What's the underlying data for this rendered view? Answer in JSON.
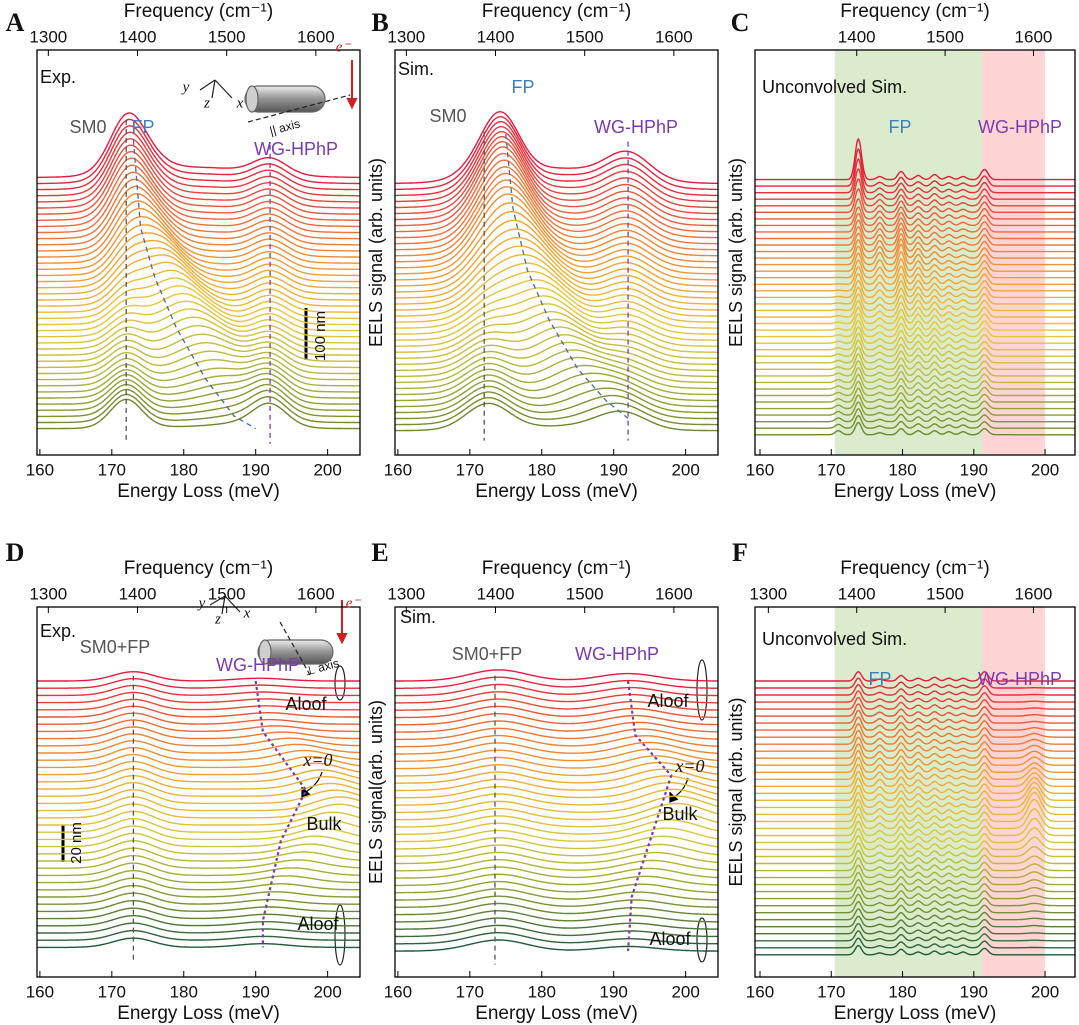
{
  "chart_data": [
    {
      "type": "waterfall",
      "letter": "A",
      "x2label": "Frequency (cm⁻¹)",
      "xlabel": "Energy Loss (meV)",
      "xlim": [
        159.6,
        204.5
      ],
      "xticks": [
        160,
        170,
        180,
        190,
        200
      ],
      "x2lim": [
        1287.3,
        1649.5
      ],
      "x2ticks": [
        1300,
        1400,
        1500,
        1600
      ],
      "count": 42,
      "colors": [
        "#e8193c",
        "#f06a3a",
        "#f4a030",
        "#e8c83a",
        "#b8b840",
        "#6b8a2a"
      ],
      "peaks": [
        {
          "c": [
            172
          ],
          "w": [
            2.2
          ],
          "a": [
            30,
            25,
            20,
            18,
            18,
            20,
            28
          ]
        },
        {
          "c": [
            173,
            173.5,
            175,
            177.5,
            181,
            185,
            189.5
          ],
          "w": [
            3,
            3,
            3,
            3.5,
            4,
            4,
            4
          ],
          "a": [
            30,
            35,
            40,
            40,
            30,
            15,
            5
          ]
        },
        {
          "c": [
            192
          ],
          "w": [
            2.3
          ],
          "a": [
            15,
            15,
            15,
            15,
            15,
            18,
            20
          ]
        },
        {
          "c": [
            182
          ],
          "w": [
            8
          ],
          "a": [
            10,
            8,
            6,
            4,
            3,
            2,
            2
          ]
        }
      ],
      "guides": [
        {
          "color": "#555555",
          "style": "dashed",
          "points": [
            [
              172,
              -0.23
            ],
            [
              172,
              1.06
            ]
          ]
        },
        {
          "color": "#7b3bb0",
          "style": "dashed",
          "points": [
            [
              192,
              -0.13
            ],
            [
              192,
              1.06
            ]
          ]
        },
        {
          "color": "#4a6aa0",
          "style": "dashed",
          "points": [
            [
              173,
              -0.15
            ],
            [
              174,
              0.2
            ],
            [
              176,
              0.4
            ],
            [
              179,
              0.6
            ],
            [
              183,
              0.8
            ],
            [
              187,
              0.95
            ],
            [
              190,
              1.0
            ]
          ]
        }
      ],
      "annotations": [
        {
          "text": "Exp."
        },
        {
          "text": "SM0",
          "color": "#555555"
        },
        {
          "text": "FP",
          "color": "#3a7fc1"
        },
        {
          "text": "WG-HPhP",
          "color": "#7b3bb0"
        },
        {
          "text": "100 nm"
        },
        {
          "text": "y"
        },
        {
          "text": "z"
        },
        {
          "text": "x"
        },
        {
          "text": "e⁻",
          "color": "#d02020"
        },
        {
          "text": "|| axis"
        }
      ]
    },
    {
      "type": "waterfall",
      "letter": "B",
      "x2label": "Frequency (cm⁻¹)",
      "xlabel": "Energy Loss (meV)",
      "ylabel": "EELS signal (arb. units)",
      "xlim": [
        159.6,
        204.5
      ],
      "xticks": [
        160,
        170,
        180,
        190,
        200
      ],
      "x2lim": [
        1287.3,
        1649.5
      ],
      "x2ticks": [
        1300,
        1400,
        1500,
        1600
      ],
      "count": 42,
      "colors": [
        "#e8193c",
        "#f06a3a",
        "#f4a030",
        "#e8c83a",
        "#b8b840",
        "#6b8a2a"
      ],
      "peaks": [
        {
          "c": [
            172.5
          ],
          "w": [
            3
          ],
          "a": [
            20,
            20,
            20,
            18,
            20,
            22,
            25
          ]
        },
        {
          "c": [
            174.5,
            175,
            176,
            178,
            181,
            185,
            190
          ],
          "w": [
            2.5,
            3,
            3.5,
            4,
            4,
            4,
            3.5
          ],
          "a": [
            45,
            55,
            55,
            45,
            35,
            25,
            10
          ]
        },
        {
          "c": [
            192
          ],
          "w": [
            3
          ],
          "a": [
            25,
            22,
            20,
            18,
            15,
            10,
            8
          ]
        },
        {
          "c": [
            182
          ],
          "w": [
            8
          ],
          "a": [
            15,
            12,
            10,
            8,
            6,
            5,
            4
          ]
        }
      ],
      "guides": [
        {
          "color": "#555555",
          "style": "dashed",
          "points": [
            [
              172,
              -0.21
            ],
            [
              172,
              1.04
            ]
          ]
        },
        {
          "color": "#7b3bb0",
          "style": "dashed",
          "points": [
            [
              192,
              -0.17
            ],
            [
              192,
              1.04
            ]
          ]
        },
        {
          "color": "#4a6aa0",
          "style": "dashed",
          "points": [
            [
              175,
              -0.2
            ],
            [
              176,
              0.1
            ],
            [
              178,
              0.35
            ],
            [
              181,
              0.55
            ],
            [
              185,
              0.75
            ],
            [
              189,
              0.88
            ],
            [
              192,
              0.95
            ]
          ]
        }
      ],
      "annotations": [
        {
          "text": "Sim."
        },
        {
          "text": "SM0",
          "color": "#555555"
        },
        {
          "text": "FP",
          "color": "#3a7fc1"
        },
        {
          "text": "WG-HPhP",
          "color": "#7b3bb0"
        }
      ]
    },
    {
      "type": "waterfall",
      "letter": "C",
      "x2label": "Frequency (cm⁻¹)",
      "xlabel": "Energy Loss (meV)",
      "ylabel": "EELS signal (arb. units)",
      "xlim": [
        159.3,
        204.2
      ],
      "xticks": [
        160,
        170,
        180,
        190,
        200
      ],
      "x2lim": [
        1284.9,
        1647.0
      ],
      "x2ticks": [
        1400,
        1500,
        1600
      ],
      "count": 40,
      "colors": [
        "#e8193c",
        "#f06a3a",
        "#f4a030",
        "#e8c83a",
        "#b8b840",
        "#6b8a2a"
      ],
      "regions": [
        {
          "x": [
            170.5,
            191.2
          ],
          "color": "rgba(150,200,110,0.35)"
        },
        {
          "x": [
            191.2,
            200
          ],
          "color": "rgba(255,120,120,0.32)"
        }
      ],
      "peaks": [
        {
          "c": [
            171
          ],
          "w": [
            0.45
          ],
          "a": [
            0,
            0,
            0,
            1,
            2,
            3,
            4
          ]
        },
        {
          "c": [
            173.8
          ],
          "w": [
            0.45
          ],
          "a": [
            40,
            18,
            18,
            16,
            16,
            14,
            12
          ]
        },
        {
          "c": [
            176.8
          ],
          "w": [
            0.45
          ],
          "a": [
            3,
            8,
            12,
            6,
            4,
            3,
            2
          ]
        },
        {
          "c": [
            179.8
          ],
          "w": [
            0.45
          ],
          "a": [
            8,
            12,
            20,
            15,
            12,
            10,
            6
          ]
        },
        {
          "c": [
            182.2
          ],
          "w": [
            0.45
          ],
          "a": [
            4,
            6,
            10,
            10,
            8,
            6,
            4
          ]
        },
        {
          "c": [
            184.5
          ],
          "w": [
            0.45
          ],
          "a": [
            5,
            6,
            6,
            8,
            8,
            6,
            4
          ]
        },
        {
          "c": [
            186.5
          ],
          "w": [
            0.45
          ],
          "a": [
            3,
            4,
            4,
            5,
            5,
            4,
            3
          ]
        },
        {
          "c": [
            188.5
          ],
          "w": [
            0.45
          ],
          "a": [
            3,
            3,
            3,
            4,
            4,
            4,
            3
          ]
        },
        {
          "c": [
            191.5
          ],
          "w": [
            0.5
          ],
          "a": [
            10,
            10,
            10,
            10,
            8,
            8,
            6
          ]
        }
      ],
      "annotations": [
        {
          "text": "Unconvolved Sim."
        },
        {
          "text": "FP",
          "color": "#3a7fc1"
        },
        {
          "text": "WG-HPhP",
          "color": "#7b3bb0"
        }
      ]
    },
    {
      "type": "waterfall",
      "letter": "D",
      "x2label": "Frequency (cm⁻¹)",
      "xlabel": "Energy Loss (meV)",
      "xlim": [
        159.6,
        204.5
      ],
      "xticks": [
        160,
        170,
        180,
        190,
        200
      ],
      "x2lim": [
        1287.3,
        1649.5
      ],
      "x2ticks": [
        1300,
        1400,
        1500,
        1600
      ],
      "count": 38,
      "colors": [
        "#e8193c",
        "#f07030",
        "#f0b030",
        "#d8c83a",
        "#8aa030",
        "#1f5a3a"
      ],
      "peaks": [
        {
          "c": [
            173
          ],
          "w": [
            2.8
          ],
          "a": [
            10,
            12,
            14,
            15,
            14,
            12,
            10
          ]
        },
        {
          "c": [
            190.5,
            192,
            198,
            202,
            197,
            192,
            191
          ],
          "w": [
            3.5
          ],
          "a": [
            3,
            5,
            12,
            15,
            10,
            5,
            4
          ]
        }
      ],
      "guides": [
        {
          "color": "#555555",
          "style": "dashed",
          "points": [
            [
              173,
              -0.02
            ],
            [
              173,
              1.05
            ]
          ]
        },
        {
          "color": "#7b3bb0",
          "style": "dotted",
          "points": [
            [
              190,
              0
            ],
            [
              191,
              0.19
            ],
            [
              197,
              0.41
            ],
            [
              193.5,
              0.6
            ],
            [
              191,
              0.9
            ],
            [
              191,
              1.0
            ]
          ]
        }
      ],
      "annotations": [
        {
          "text": "Exp."
        },
        {
          "text": "SM0+FP",
          "color": "#555555"
        },
        {
          "text": "WG-HPhP",
          "color": "#7b3bb0"
        },
        {
          "text": "Aloof"
        },
        {
          "text": "x=0"
        },
        {
          "text": "Bulk"
        },
        {
          "text": "Aloof"
        },
        {
          "text": "20 nm"
        },
        {
          "text": "y"
        },
        {
          "text": "z"
        },
        {
          "text": "x"
        },
        {
          "text": "e⁻",
          "color": "#d02020"
        },
        {
          "text": "⊥ axis"
        }
      ]
    },
    {
      "type": "waterfall",
      "letter": "E",
      "x2label": "Frequency (cm⁻¹)",
      "xlabel": "Energy Loss (meV)",
      "ylabel": "EELS signal(arb. units)",
      "xlim": [
        159.6,
        204.5
      ],
      "xticks": [
        160,
        170,
        180,
        190,
        200
      ],
      "x2lim": [
        1287.3,
        1649.5
      ],
      "x2ticks": [
        1300,
        1400,
        1500,
        1600
      ],
      "count": 38,
      "colors": [
        "#e8193c",
        "#f07030",
        "#f0b030",
        "#d8c83a",
        "#8aa030",
        "#1f5a3a"
      ],
      "peaks": [
        {
          "c": [
            174
          ],
          "w": [
            4
          ],
          "a": [
            12
          ]
        },
        {
          "c": [
            192,
            193,
            196,
            199,
            196,
            193,
            192
          ],
          "w": [
            4
          ],
          "a": [
            8,
            10,
            14,
            18,
            12,
            8,
            5
          ]
        }
      ],
      "guides": [
        {
          "color": "#555555",
          "style": "dashed",
          "points": [
            [
              173.5,
              -0.02
            ],
            [
              173.5,
              1.05
            ]
          ]
        },
        {
          "color": "#7b3bb0",
          "style": "dotted",
          "points": [
            [
              192,
              0
            ],
            [
              193,
              0.2
            ],
            [
              198,
              0.35
            ],
            [
              192.5,
              0.8
            ],
            [
              192,
              1.0
            ]
          ]
        }
      ],
      "annotations": [
        {
          "text": "Sim."
        },
        {
          "text": "SM0+FP",
          "color": "#555555"
        },
        {
          "text": "WG-HPhP",
          "color": "#7b3bb0"
        },
        {
          "text": "Aloof"
        },
        {
          "text": "x=0"
        },
        {
          "text": "Bulk"
        },
        {
          "text": "Aloof"
        }
      ]
    },
    {
      "type": "waterfall",
      "letter": "F",
      "x2label": "Frequency (cm⁻¹)",
      "xlabel": "Energy Loss (meV)",
      "ylabel": "EELS signal (arb. units)",
      "xlim": [
        159.3,
        204.2
      ],
      "xticks": [
        160,
        170,
        180,
        190,
        200
      ],
      "x2lim": [
        1284.9,
        1647.0
      ],
      "x2ticks": [
        1300,
        1400,
        1500,
        1600
      ],
      "count": 40,
      "colors": [
        "#e8193c",
        "#f07030",
        "#f0b030",
        "#d8c83a",
        "#8aa030",
        "#1f5a3a"
      ],
      "regions": [
        {
          "x": [
            170.5,
            191.2
          ],
          "color": "rgba(150,200,110,0.35)"
        },
        {
          "x": [
            191.2,
            200
          ],
          "color": "rgba(255,120,120,0.32)"
        }
      ],
      "peaks": [
        {
          "c": [
            173.8
          ],
          "w": [
            0.45
          ],
          "a": [
            10,
            14,
            16,
            16,
            14,
            12,
            10
          ]
        },
        {
          "c": [
            176.8
          ],
          "w": [
            0.45
          ],
          "a": [
            2,
            5,
            8,
            6,
            4,
            3,
            2
          ]
        },
        {
          "c": [
            179.8
          ],
          "w": [
            0.45
          ],
          "a": [
            6,
            8,
            10,
            10,
            9,
            8,
            6
          ]
        },
        {
          "c": [
            182.2
          ],
          "w": [
            0.45
          ],
          "a": [
            3,
            5,
            7,
            7,
            6,
            5,
            3
          ]
        },
        {
          "c": [
            184.5
          ],
          "w": [
            0.45
          ],
          "a": [
            4,
            5,
            5,
            6,
            6,
            5,
            4
          ]
        },
        {
          "c": [
            186.5
          ],
          "w": [
            0.45
          ],
          "a": [
            3,
            4,
            4,
            5,
            5,
            4,
            3
          ]
        },
        {
          "c": [
            188.5
          ],
          "w": [
            0.45
          ],
          "a": [
            3,
            3,
            3,
            4,
            4,
            3,
            3
          ]
        },
        {
          "c": [
            191.5
          ],
          "w": [
            0.5
          ],
          "a": [
            10,
            10,
            10,
            10,
            9,
            8,
            7
          ]
        },
        {
          "c": [
            198.5
          ],
          "w": [
            0.9
          ],
          "a": [
            0,
            2,
            10,
            25,
            8,
            2,
            0
          ]
        }
      ],
      "annotations": [
        {
          "text": "Unconvolved Sim."
        },
        {
          "text": "FP",
          "color": "#3a7fc1"
        },
        {
          "text": "WG-HPhP",
          "color": "#7b3bb0"
        }
      ]
    }
  ]
}
